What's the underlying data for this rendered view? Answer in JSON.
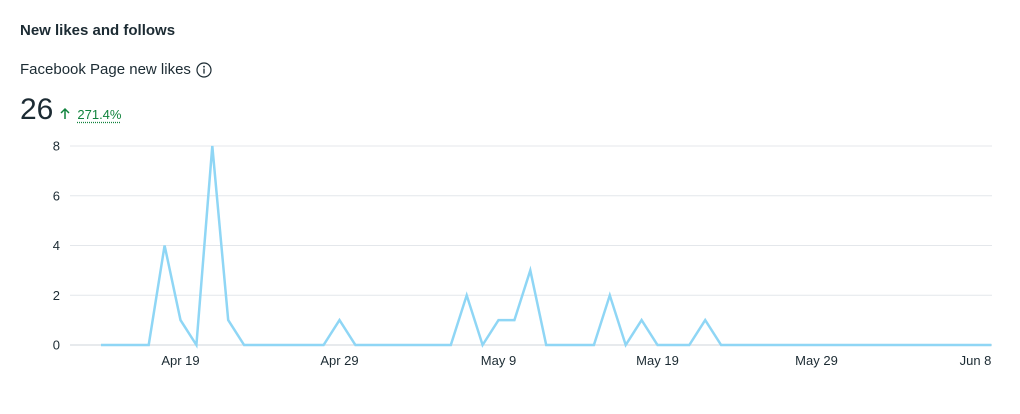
{
  "section_title": "New likes and follows",
  "metric": {
    "label": "Facebook Page new likes",
    "value": "26",
    "change": "271.4%",
    "change_direction": "up",
    "change_color": "#11833d",
    "info_icon": "info-circle-icon"
  },
  "chart_data": {
    "type": "line",
    "title": "",
    "xlabel": "",
    "ylabel": "",
    "ylim": [
      0,
      8
    ],
    "yticks": [
      0,
      2,
      4,
      6,
      8
    ],
    "grid": true,
    "line_color": "#8fd6f5",
    "x_tick_labels": [
      {
        "index": 5,
        "label": "Apr 19"
      },
      {
        "index": 15,
        "label": "Apr 29"
      },
      {
        "index": 25,
        "label": "May 9"
      },
      {
        "index": 35,
        "label": "May 19"
      },
      {
        "index": 45,
        "label": "May 29"
      },
      {
        "index": 55,
        "label": "Jun 8"
      }
    ],
    "series": [
      {
        "x_start": "Apr 14",
        "values": [
          0,
          0,
          0,
          0,
          4,
          1,
          0,
          8,
          1,
          0,
          0,
          0,
          0,
          0,
          0,
          1,
          0,
          0,
          0,
          0,
          0,
          0,
          0,
          2,
          0,
          1,
          1,
          3,
          0,
          0,
          0,
          0,
          2,
          0,
          1,
          0,
          0,
          0,
          1,
          0,
          0,
          0,
          0,
          0,
          0,
          0,
          0,
          0,
          0,
          0,
          0,
          0,
          0,
          0,
          0,
          0,
          0
        ]
      }
    ]
  }
}
